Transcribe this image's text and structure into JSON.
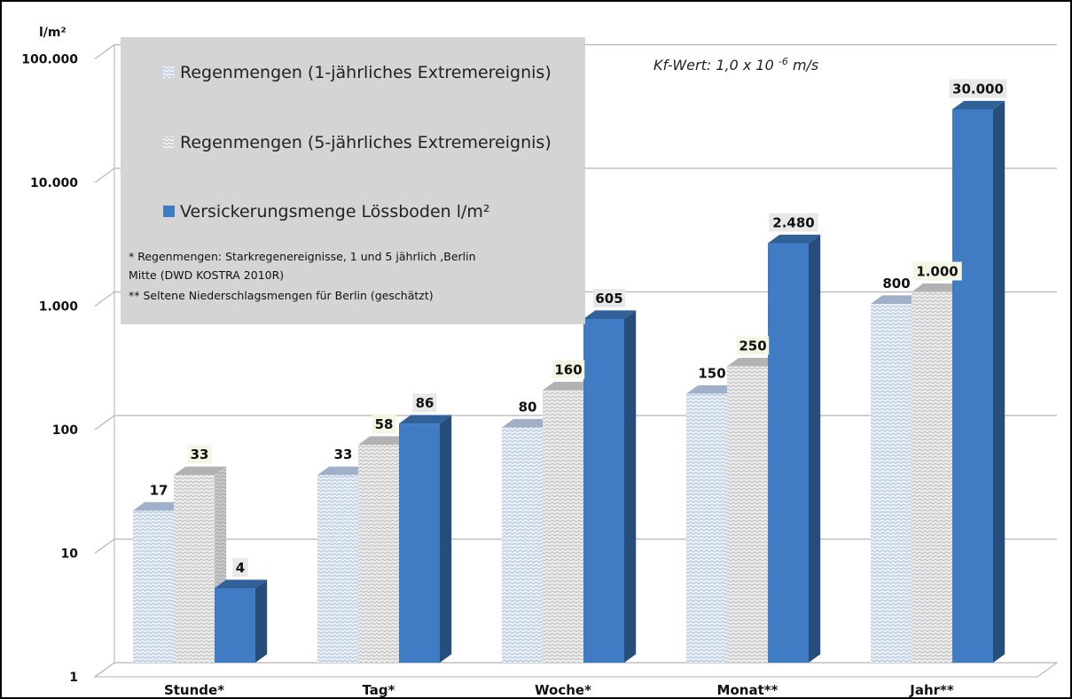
{
  "chart_data": {
    "type": "bar",
    "title": "",
    "ylabel": "l/m²",
    "xlabel": "",
    "yscale": "log",
    "ylim": [
      1,
      100000
    ],
    "yticks": [
      1,
      10,
      100,
      1000,
      10000,
      100000
    ],
    "ytick_labels": [
      "1",
      "10",
      "100",
      "1.000",
      "10.000",
      "100.000"
    ],
    "categories": [
      "Stunde*",
      "Tag*",
      "Woche*",
      "Monat**",
      "Jahr**"
    ],
    "series": [
      {
        "name": "Regenmengen (1-jährliches Extremereignis)",
        "values": [
          17,
          33,
          80,
          150,
          800
        ],
        "labels": [
          "17",
          "33",
          "80",
          "150",
          "800"
        ],
        "color": "#c6d4e8"
      },
      {
        "name": "Regenmengen (5-jährliches Extremereignis)",
        "values": [
          33,
          58,
          160,
          250,
          1000
        ],
        "labels": [
          "33",
          "58",
          "160",
          "250",
          "1.000"
        ],
        "color": "#eaeaea"
      },
      {
        "name": "Versickerungsmenge Lössboden l/m²",
        "values": [
          4,
          86,
          605,
          2480,
          30000
        ],
        "labels": [
          "4",
          "86",
          "605",
          "2.480",
          "30.000"
        ],
        "color": "#3f7cc4"
      }
    ],
    "legend_position": "top-left",
    "grid": true,
    "notes": [
      "* Regenmengen: Starkregenereignisse, 1 und 5 jährlich ,Berlin",
      "Mitte (DWD KOSTRA 2010R)",
      "** Seltene  Niederschlagsmengen für Berlin (geschätzt)"
    ],
    "annotation": {
      "text": "Kf-Wert: 1,0 x 10",
      "exponent": "-6",
      "unit": "m/s"
    }
  }
}
